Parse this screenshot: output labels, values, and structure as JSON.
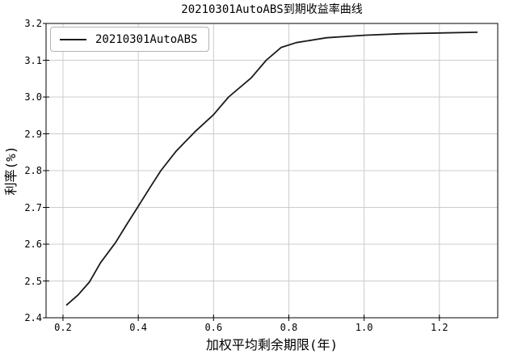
{
  "chart_data": {
    "type": "line",
    "title": "20210301AutoABS到期收益率曲线",
    "xlabel": "加权平均剩余期限(年)",
    "ylabel": "利率(%)",
    "grid": true,
    "legend_position": "upper-left",
    "xlim": [
      0.155,
      1.355
    ],
    "ylim": [
      2.4,
      3.2
    ],
    "xticks": [
      0.2,
      0.4,
      0.6,
      0.8,
      1.0,
      1.2
    ],
    "xtick_labels": [
      "0.2",
      "0.4",
      "0.6",
      "0.8",
      "1.0",
      "1.2"
    ],
    "yticks": [
      2.4,
      2.5,
      2.6,
      2.7,
      2.8,
      2.9,
      3.0,
      3.1,
      3.2
    ],
    "ytick_labels": [
      "2.4",
      "2.5",
      "2.6",
      "2.7",
      "2.8",
      "2.9",
      "3.0",
      "3.1",
      "3.2"
    ],
    "series": [
      {
        "name": "20210301AutoABS",
        "color": "#1a1a1a",
        "points": [
          [
            0.21,
            2.435
          ],
          [
            0.24,
            2.462
          ],
          [
            0.27,
            2.497
          ],
          [
            0.3,
            2.55
          ],
          [
            0.34,
            2.605
          ],
          [
            0.37,
            2.655
          ],
          [
            0.4,
            2.703
          ],
          [
            0.43,
            2.752
          ],
          [
            0.46,
            2.8
          ],
          [
            0.5,
            2.852
          ],
          [
            0.55,
            2.905
          ],
          [
            0.6,
            2.952
          ],
          [
            0.64,
            3.0
          ],
          [
            0.7,
            3.052
          ],
          [
            0.74,
            3.1
          ],
          [
            0.78,
            3.135
          ],
          [
            0.82,
            3.148
          ],
          [
            0.9,
            3.161
          ],
          [
            1.0,
            3.168
          ],
          [
            1.1,
            3.172
          ],
          [
            1.2,
            3.174
          ],
          [
            1.3,
            3.176
          ]
        ]
      }
    ],
    "colors": {
      "background": "#ffffff",
      "grid": "#cccccc",
      "axis_border": "#000000",
      "tick": "#000000",
      "curve": "#1a1a1a"
    }
  }
}
